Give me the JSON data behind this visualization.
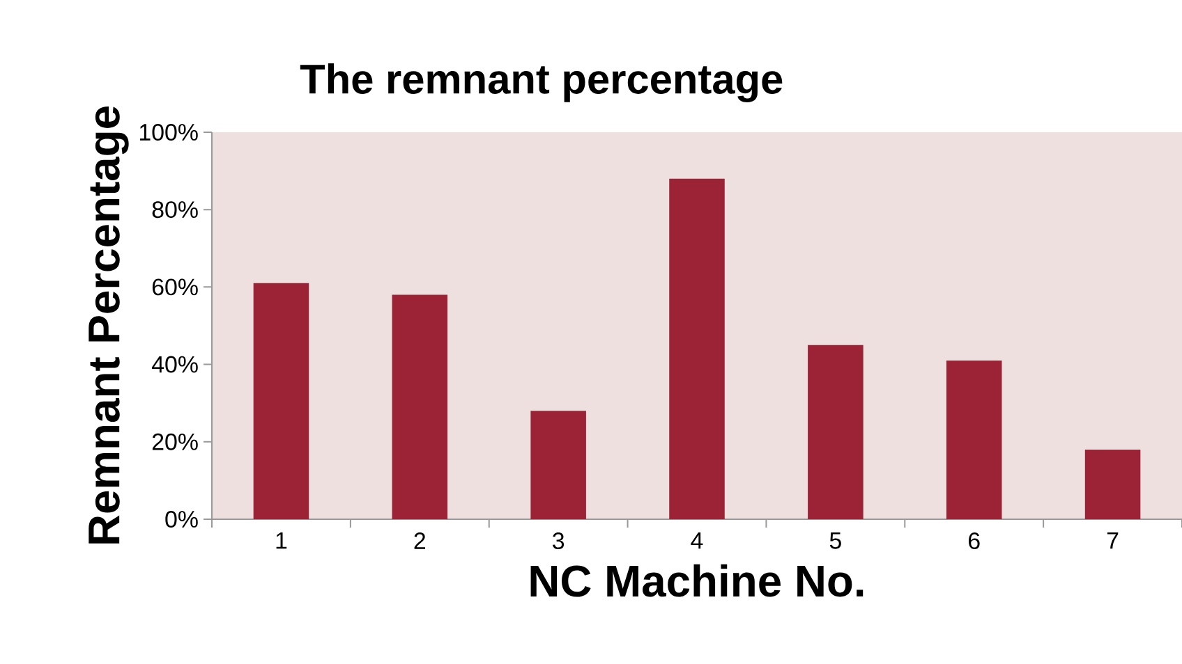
{
  "chart_data": {
    "type": "bar",
    "title": "The remnant percentage",
    "xlabel": "NC Machine No.",
    "ylabel": "Remnant Percentage",
    "categories": [
      "1",
      "2",
      "3",
      "4",
      "5",
      "6",
      "7"
    ],
    "values": [
      61,
      58,
      28,
      88,
      45,
      41,
      18
    ],
    "color": "#9b2335",
    "ylim": [
      0,
      100
    ],
    "yticks": [
      {
        "value": 0,
        "label": "0%"
      },
      {
        "value": 20,
        "label": "20%"
      },
      {
        "value": 40,
        "label": "40%"
      },
      {
        "value": 60,
        "label": "60%"
      },
      {
        "value": 80,
        "label": "80%"
      },
      {
        "value": 100,
        "label": "100%"
      }
    ]
  }
}
